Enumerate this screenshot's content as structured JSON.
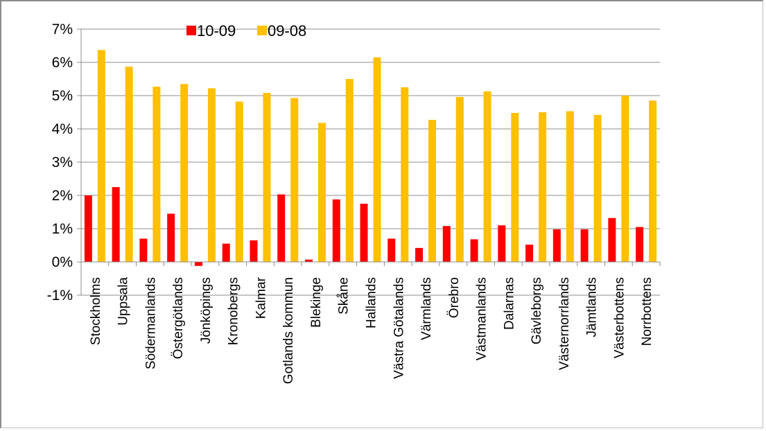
{
  "chart_data": {
    "type": "bar",
    "categories": [
      "Stockholms",
      "Uppsala",
      "Södermanlands",
      "Östergötlands",
      "Jönköpings",
      "Kronobergs",
      "Kalmar",
      "Gotlands kommun",
      "Blekinge",
      "Skåne",
      "Hallands",
      "Västra Götalands",
      "Värmlands",
      "Örebro",
      "Västmanlands",
      "Dalarnas",
      "Gävleborgs",
      "Västernorrlands",
      "Jämtlands",
      "Västerbottens",
      "Norrbottens"
    ],
    "series": [
      {
        "name": "10-09",
        "color": "#ff0000",
        "values": [
          2.0,
          2.25,
          0.7,
          1.45,
          -0.12,
          0.55,
          0.65,
          2.03,
          0.07,
          1.88,
          1.75,
          0.7,
          0.42,
          1.08,
          0.68,
          1.1,
          0.52,
          0.98,
          0.98,
          1.32,
          1.05
        ]
      },
      {
        "name": "09-08",
        "color": "#ffc000",
        "values": [
          6.37,
          5.87,
          5.27,
          5.35,
          5.22,
          4.82,
          5.08,
          4.93,
          4.18,
          5.5,
          6.15,
          5.25,
          4.27,
          4.96,
          5.13,
          4.48,
          4.5,
          4.53,
          4.42,
          5.0,
          4.85
        ]
      }
    ],
    "y_ticks": [
      "-1%",
      "0%",
      "1%",
      "2%",
      "3%",
      "4%",
      "5%",
      "6%",
      "7%"
    ],
    "ylim": [
      -1,
      7
    ],
    "grid": true,
    "legend_position": "top-left",
    "title": "",
    "xlabel": "",
    "ylabel": ""
  }
}
